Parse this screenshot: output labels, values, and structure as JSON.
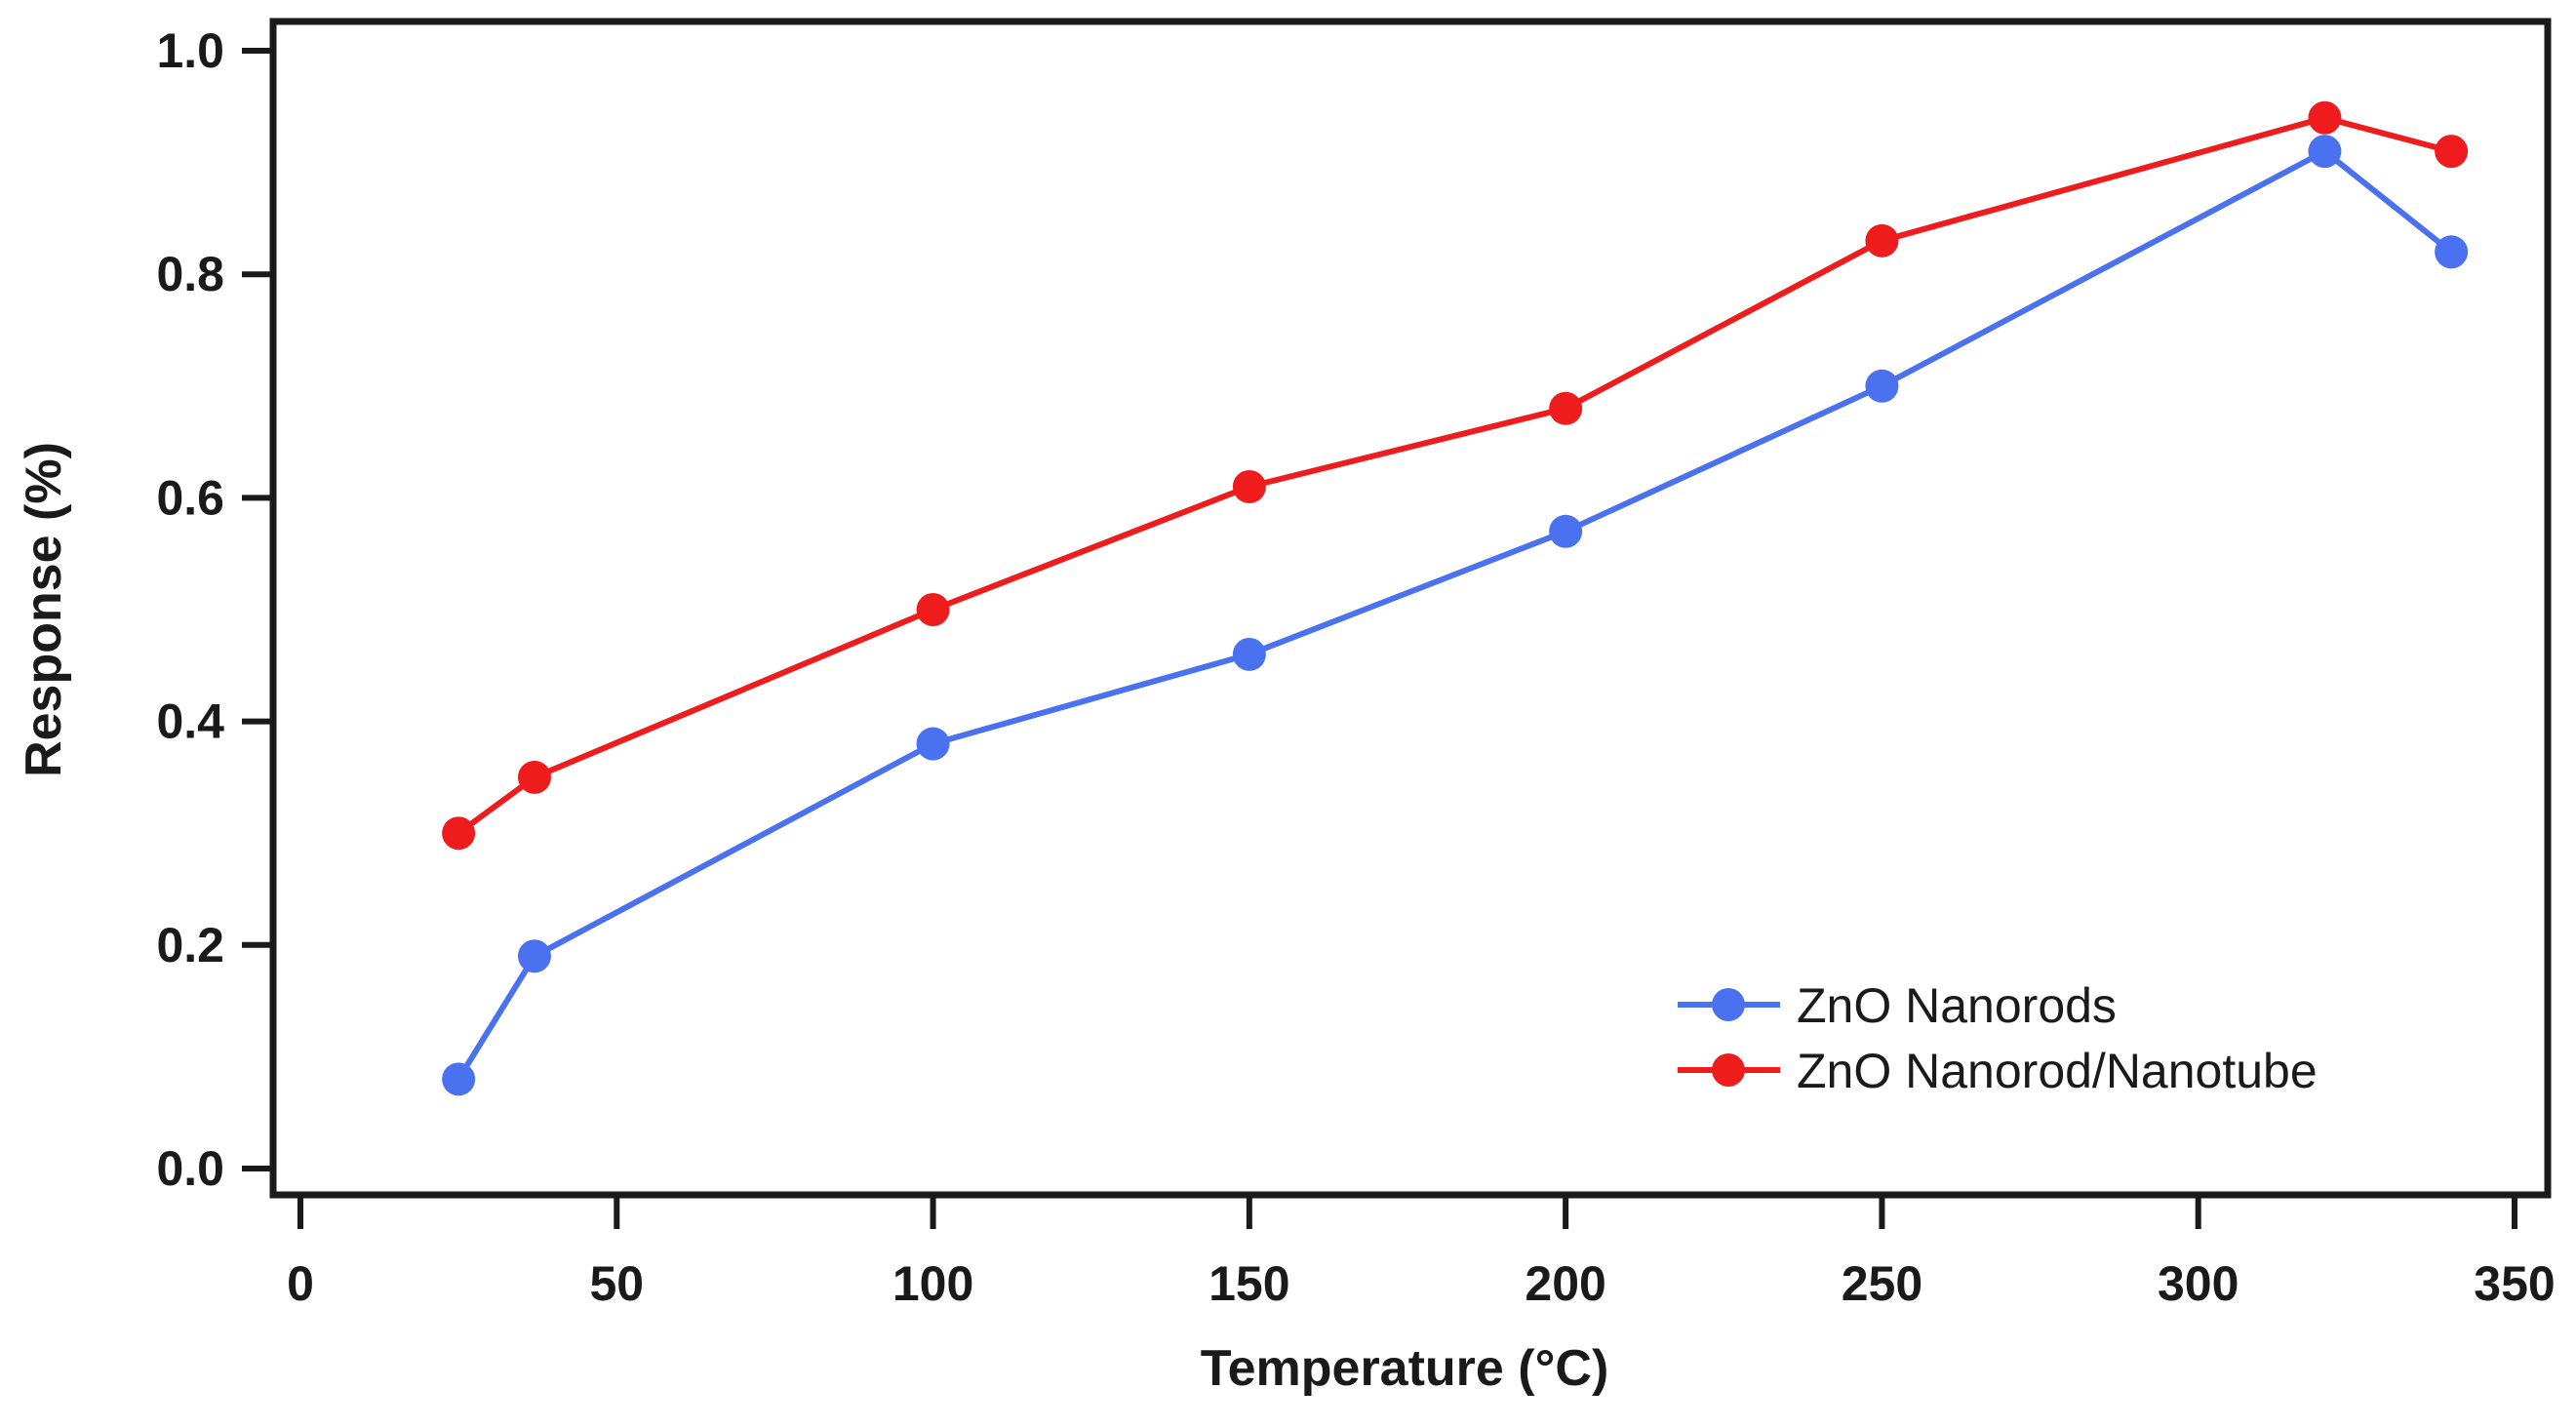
{
  "chart_data": {
    "type": "line",
    "title": "",
    "xlabel": "Temperature (°C)",
    "ylabel": "Response (%)",
    "xlim": [
      -5,
      355
    ],
    "ylim": [
      -0.025,
      1.025
    ],
    "xticks": [
      0,
      50,
      100,
      150,
      200,
      250,
      300,
      350
    ],
    "xtick_labels": [
      "0",
      "50",
      "100",
      "150",
      "200",
      "250",
      "300",
      "350"
    ],
    "yticks": [
      0.0,
      0.2,
      0.4,
      0.6,
      0.8,
      1.0
    ],
    "ytick_labels": [
      "0.0",
      "0.2",
      "0.4",
      "0.6",
      "0.8",
      "1.0"
    ],
    "grid": false,
    "legend_position": "bottom-right",
    "series": [
      {
        "name": "ZnO Nanorods",
        "color": "#4a72f0",
        "x": [
          25,
          37,
          100,
          150,
          200,
          250,
          320,
          340
        ],
        "y": [
          0.08,
          0.19,
          0.38,
          0.46,
          0.57,
          0.7,
          0.91,
          0.82
        ]
      },
      {
        "name": "ZnO Nanorod/Nanotube",
        "color": "#ee1c1c",
        "x": [
          25,
          37,
          100,
          150,
          200,
          250,
          320,
          340
        ],
        "y": [
          0.3,
          0.35,
          0.5,
          0.61,
          0.68,
          0.83,
          0.94,
          0.91
        ]
      }
    ]
  }
}
